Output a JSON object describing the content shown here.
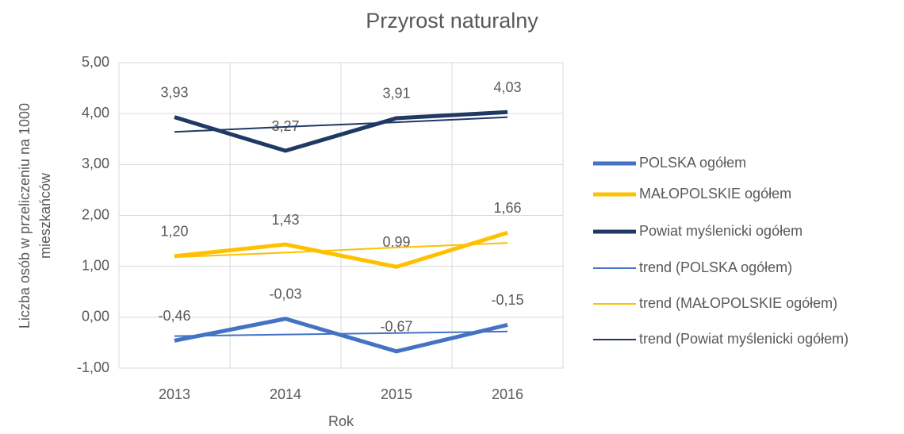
{
  "chart_data": {
    "type": "line",
    "title": "Przyrost naturalny",
    "xlabel": "Rok",
    "ylabel": [
      "Liczba osób w przeliczeniu na 1000",
      "mieszkańców"
    ],
    "categories": [
      "2013",
      "2014",
      "2015",
      "2016"
    ],
    "ylim": [
      -1,
      5
    ],
    "yticks": [
      {
        "value": -1,
        "label": "-1,00"
      },
      {
        "value": 0,
        "label": "0,00"
      },
      {
        "value": 1,
        "label": "1,00"
      },
      {
        "value": 2,
        "label": "2,00"
      },
      {
        "value": 3,
        "label": "3,00"
      },
      {
        "value": 4,
        "label": "4,00"
      },
      {
        "value": 5,
        "label": "5,00"
      }
    ],
    "grid": true,
    "legend": "right",
    "series": [
      {
        "name": "POLSKA ogółem",
        "color": "#4472c4",
        "values": [
          -0.46,
          -0.03,
          -0.67,
          -0.15
        ],
        "value_labels": [
          "-0,46",
          "-0,03",
          "-0,67",
          "-0,15"
        ]
      },
      {
        "name": "MAŁOPOLSKIE ogółem",
        "color": "#ffc000",
        "values": [
          1.2,
          1.43,
          0.99,
          1.66
        ],
        "value_labels": [
          "1,20",
          "1,43",
          "0,99",
          "1,66"
        ]
      },
      {
        "name": "Powiat myślenicki ogółem",
        "color": "#203864",
        "values": [
          3.93,
          3.27,
          3.91,
          4.03
        ],
        "value_labels": [
          "3,93",
          "3,27",
          "3,91",
          "4,03"
        ]
      },
      {
        "name": "trend (POLSKA ogółem)",
        "color": "#4472c4",
        "values": [
          -0.37,
          -0.34,
          -0.31,
          -0.28
        ],
        "trend": true
      },
      {
        "name": "trend (MAŁOPOLSKIE ogółem)",
        "color": "#ffc000",
        "values": [
          1.18,
          1.27,
          1.37,
          1.46
        ],
        "trend": true
      },
      {
        "name": "trend (Powiat myślenicki ogółem)",
        "color": "#203864",
        "values": [
          3.64,
          3.74,
          3.83,
          3.93
        ],
        "trend": true
      }
    ]
  }
}
